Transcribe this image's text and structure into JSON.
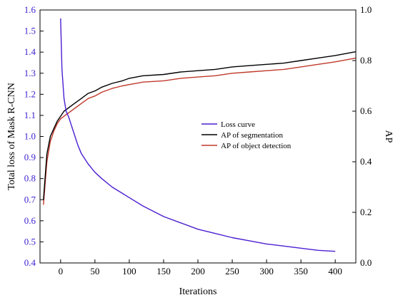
{
  "chart_data": {
    "type": "line",
    "xlabel": "Iterations",
    "ylabel_left": "Total loss of Mask R-CNN",
    "ylabel_right": "AP",
    "xlim": [
      -30,
      430
    ],
    "ylim_left": [
      0.4,
      1.6
    ],
    "ylim_right": [
      0.0,
      1.0
    ],
    "x_ticks": [
      0,
      50,
      100,
      150,
      200,
      250,
      300,
      350,
      400
    ],
    "y_left_ticks": [
      "0.4",
      "0.5",
      "0.6",
      "0.7",
      "0.8",
      "0.9",
      "1.0",
      "1.1",
      "1.2",
      "1.3",
      "1.4",
      "1.5",
      "1.6"
    ],
    "y_right_ticks": [
      "0.0",
      "0.2",
      "0.4",
      "0.6",
      "0.8",
      "1.0"
    ],
    "grid": false,
    "legend_position": "center-right",
    "series": [
      {
        "name": "Loss curve",
        "axis": "left",
        "color": "#4b1fd1",
        "x": [
          0,
          2,
          5,
          8,
          12,
          15,
          20,
          25,
          30,
          40,
          50,
          60,
          75,
          90,
          100,
          120,
          150,
          175,
          200,
          225,
          250,
          275,
          300,
          325,
          350,
          375,
          400
        ],
        "y": [
          1.56,
          1.32,
          1.18,
          1.12,
          1.09,
          1.06,
          1.01,
          0.96,
          0.92,
          0.87,
          0.83,
          0.8,
          0.76,
          0.73,
          0.71,
          0.67,
          0.62,
          0.59,
          0.56,
          0.54,
          0.52,
          0.505,
          0.49,
          0.48,
          0.47,
          0.46,
          0.455
        ]
      },
      {
        "name": "AP of segmentation",
        "axis": "right",
        "color": "#000000",
        "x": [
          -25,
          -20,
          -15,
          -10,
          -5,
          0,
          5,
          10,
          20,
          30,
          40,
          50,
          60,
          75,
          90,
          100,
          120,
          150,
          175,
          200,
          225,
          250,
          275,
          300,
          325,
          350,
          375,
          400,
          430
        ],
        "y": [
          0.25,
          0.43,
          0.5,
          0.53,
          0.56,
          0.58,
          0.6,
          0.61,
          0.63,
          0.65,
          0.67,
          0.68,
          0.695,
          0.71,
          0.72,
          0.73,
          0.74,
          0.745,
          0.755,
          0.76,
          0.765,
          0.775,
          0.78,
          0.785,
          0.79,
          0.8,
          0.81,
          0.82,
          0.835
        ]
      },
      {
        "name": "AP of object detection",
        "axis": "right",
        "color": "#c0392b",
        "x": [
          -25,
          -20,
          -15,
          -10,
          -5,
          0,
          5,
          10,
          20,
          30,
          40,
          50,
          60,
          75,
          90,
          100,
          120,
          150,
          175,
          200,
          225,
          250,
          275,
          300,
          325,
          350,
          375,
          400,
          430
        ],
        "y": [
          0.23,
          0.4,
          0.48,
          0.52,
          0.55,
          0.57,
          0.58,
          0.59,
          0.61,
          0.63,
          0.65,
          0.66,
          0.675,
          0.69,
          0.7,
          0.705,
          0.715,
          0.72,
          0.73,
          0.735,
          0.74,
          0.75,
          0.755,
          0.76,
          0.765,
          0.775,
          0.785,
          0.795,
          0.81
        ]
      }
    ]
  }
}
